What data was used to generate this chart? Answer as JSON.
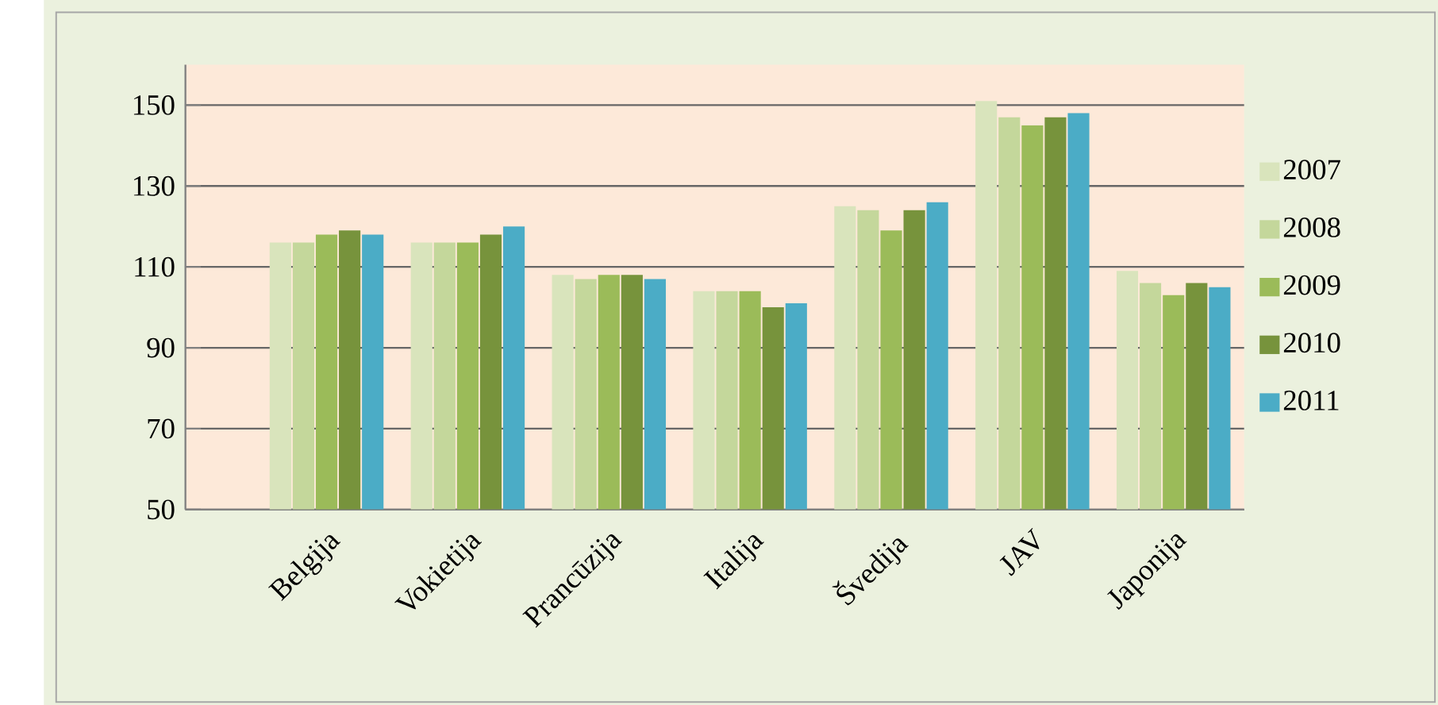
{
  "chart_data": {
    "type": "bar",
    "categories": [
      "Belgija",
      "Vokietija",
      "Prancūzija",
      "Italija",
      "Švedija",
      "JAV",
      "Japonija"
    ],
    "series": [
      {
        "name": "2007",
        "color": "#d9e4bc",
        "values": [
          116,
          116,
          108,
          104,
          125,
          151,
          109
        ]
      },
      {
        "name": "2008",
        "color": "#c4d79b",
        "values": [
          116,
          116,
          107,
          104,
          124,
          147,
          106
        ]
      },
      {
        "name": "2009",
        "color": "#9bbb59",
        "values": [
          118,
          116,
          108,
          104,
          119,
          145,
          103
        ]
      },
      {
        "name": "2010",
        "color": "#77933c",
        "values": [
          119,
          118,
          108,
          100,
          124,
          147,
          106
        ]
      },
      {
        "name": "2011",
        "color": "#4bacc6",
        "values": [
          118,
          120,
          107,
          101,
          126,
          148,
          105
        ]
      }
    ],
    "ylim": [
      50,
      160
    ],
    "yticks": [
      50,
      70,
      90,
      110,
      130,
      150
    ],
    "grid": "y",
    "legend": "right"
  }
}
